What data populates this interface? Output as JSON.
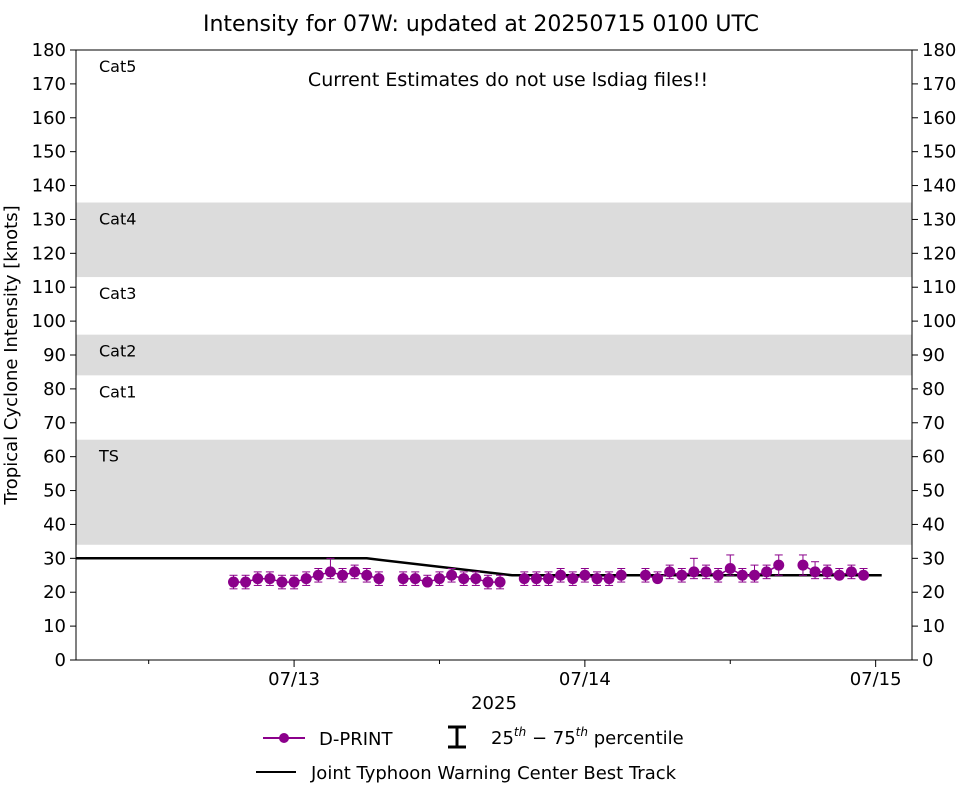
{
  "chart_data": {
    "type": "line",
    "title": "Intensity for 07W: updated at 20250715 0100 UTC",
    "annotation": "Current Estimates do not use lsdiag files!!",
    "xlabel": "2025",
    "ylabel": "Tropical Cyclone Intensity [knots]",
    "xlim": [
      "2025-07-12 06:00",
      "2025-07-15 03:00"
    ],
    "ylim": [
      0,
      180
    ],
    "yticks": [
      0,
      10,
      20,
      30,
      40,
      50,
      60,
      70,
      80,
      90,
      100,
      110,
      120,
      130,
      140,
      150,
      160,
      170,
      180
    ],
    "xticks": [
      {
        "label": "07/13",
        "time": "2025-07-13 00:00"
      },
      {
        "label": "07/14",
        "time": "2025-07-14 00:00"
      },
      {
        "label": "07/15",
        "time": "2025-07-15 00:00"
      }
    ],
    "minor_xticks": [
      "2025-07-12 12:00",
      "2025-07-13 12:00",
      "2025-07-14 12:00"
    ],
    "category_bands": [
      {
        "label": "TS",
        "ymin": 34,
        "ymax": 65,
        "shaded": true
      },
      {
        "label": "Cat1",
        "ymin": 65,
        "ymax": 84,
        "shaded": false
      },
      {
        "label": "Cat2",
        "ymin": 84,
        "ymax": 96,
        "shaded": true
      },
      {
        "label": "Cat3",
        "ymin": 96,
        "ymax": 113,
        "shaded": false
      },
      {
        "label": "Cat4",
        "ymin": 113,
        "ymax": 135,
        "shaded": true
      },
      {
        "label": "Cat5",
        "ymin": 135,
        "ymax": 180,
        "shaded": false
      }
    ],
    "band_color": "#dcdcdc",
    "series": [
      {
        "name": "D-PRINT",
        "color": "#8b008b",
        "points": [
          {
            "t": "2025-07-12 19:00",
            "y": 23,
            "lo": 21,
            "hi": 25
          },
          {
            "t": "2025-07-12 20:00",
            "y": 23,
            "lo": 21,
            "hi": 25
          },
          {
            "t": "2025-07-12 21:00",
            "y": 24,
            "lo": 22,
            "hi": 26
          },
          {
            "t": "2025-07-12 22:00",
            "y": 24,
            "lo": 22,
            "hi": 26
          },
          {
            "t": "2025-07-12 23:00",
            "y": 23,
            "lo": 21,
            "hi": 25
          },
          {
            "t": "2025-07-13 00:00",
            "y": 23,
            "lo": 21,
            "hi": 25
          },
          {
            "t": "2025-07-13 01:00",
            "y": 24,
            "lo": 22,
            "hi": 26
          },
          {
            "t": "2025-07-13 02:00",
            "y": 25,
            "lo": 23,
            "hi": 27
          },
          {
            "t": "2025-07-13 03:00",
            "y": 26,
            "lo": 24,
            "hi": 30
          },
          {
            "t": "2025-07-13 04:00",
            "y": 25,
            "lo": 23,
            "hi": 27
          },
          {
            "t": "2025-07-13 05:00",
            "y": 26,
            "lo": 24,
            "hi": 28
          },
          {
            "t": "2025-07-13 06:00",
            "y": 25,
            "lo": 23,
            "hi": 27
          },
          {
            "t": "2025-07-13 07:00",
            "y": 24,
            "lo": 22,
            "hi": 26
          },
          {
            "t": "2025-07-13 09:00",
            "y": 24,
            "lo": 22,
            "hi": 26
          },
          {
            "t": "2025-07-13 10:00",
            "y": 24,
            "lo": 22,
            "hi": 26
          },
          {
            "t": "2025-07-13 11:00",
            "y": 23,
            "lo": 22,
            "hi": 25
          },
          {
            "t": "2025-07-13 12:00",
            "y": 24,
            "lo": 22,
            "hi": 26
          },
          {
            "t": "2025-07-13 13:00",
            "y": 25,
            "lo": 23,
            "hi": 27
          },
          {
            "t": "2025-07-13 14:00",
            "y": 24,
            "lo": 22,
            "hi": 26
          },
          {
            "t": "2025-07-13 15:00",
            "y": 24,
            "lo": 22,
            "hi": 26
          },
          {
            "t": "2025-07-13 16:00",
            "y": 23,
            "lo": 21,
            "hi": 25
          },
          {
            "t": "2025-07-13 17:00",
            "y": 23,
            "lo": 21,
            "hi": 25
          },
          {
            "t": "2025-07-13 19:00",
            "y": 24,
            "lo": 22,
            "hi": 26
          },
          {
            "t": "2025-07-13 20:00",
            "y": 24,
            "lo": 22,
            "hi": 26
          },
          {
            "t": "2025-07-13 21:00",
            "y": 24,
            "lo": 22,
            "hi": 26
          },
          {
            "t": "2025-07-13 22:00",
            "y": 25,
            "lo": 23,
            "hi": 27
          },
          {
            "t": "2025-07-13 23:00",
            "y": 24,
            "lo": 22,
            "hi": 26
          },
          {
            "t": "2025-07-14 00:00",
            "y": 25,
            "lo": 23,
            "hi": 27
          },
          {
            "t": "2025-07-14 01:00",
            "y": 24,
            "lo": 22,
            "hi": 26
          },
          {
            "t": "2025-07-14 02:00",
            "y": 24,
            "lo": 22,
            "hi": 26
          },
          {
            "t": "2025-07-14 03:00",
            "y": 25,
            "lo": 23,
            "hi": 27
          },
          {
            "t": "2025-07-14 05:00",
            "y": 25,
            "lo": 23,
            "hi": 27
          },
          {
            "t": "2025-07-14 06:00",
            "y": 24,
            "lo": 23,
            "hi": 26
          },
          {
            "t": "2025-07-14 07:00",
            "y": 26,
            "lo": 24,
            "hi": 28
          },
          {
            "t": "2025-07-14 08:00",
            "y": 25,
            "lo": 23,
            "hi": 27
          },
          {
            "t": "2025-07-14 09:00",
            "y": 26,
            "lo": 24,
            "hi": 30
          },
          {
            "t": "2025-07-14 10:00",
            "y": 26,
            "lo": 24,
            "hi": 28
          },
          {
            "t": "2025-07-14 11:00",
            "y": 25,
            "lo": 23,
            "hi": 27
          },
          {
            "t": "2025-07-14 12:00",
            "y": 27,
            "lo": 25,
            "hi": 31
          },
          {
            "t": "2025-07-14 13:00",
            "y": 25,
            "lo": 23,
            "hi": 27
          },
          {
            "t": "2025-07-14 14:00",
            "y": 25,
            "lo": 23,
            "hi": 28
          },
          {
            "t": "2025-07-14 15:00",
            "y": 26,
            "lo": 24,
            "hi": 28
          },
          {
            "t": "2025-07-14 16:00",
            "y": 28,
            "lo": 25,
            "hi": 31
          },
          {
            "t": "2025-07-14 18:00",
            "y": 28,
            "lo": 25,
            "hi": 31
          },
          {
            "t": "2025-07-14 19:00",
            "y": 26,
            "lo": 24,
            "hi": 29
          },
          {
            "t": "2025-07-14 20:00",
            "y": 26,
            "lo": 24,
            "hi": 28
          },
          {
            "t": "2025-07-14 21:00",
            "y": 25,
            "lo": 24,
            "hi": 27
          },
          {
            "t": "2025-07-14 22:00",
            "y": 26,
            "lo": 24,
            "hi": 28
          },
          {
            "t": "2025-07-14 23:00",
            "y": 25,
            "lo": 24,
            "hi": 27
          }
        ]
      },
      {
        "name": "Joint Typhoon Warning Center Best Track",
        "color": "#000000",
        "points": [
          {
            "t": "2025-07-12 06:00",
            "y": 30
          },
          {
            "t": "2025-07-13 06:00",
            "y": 30
          },
          {
            "t": "2025-07-13 18:00",
            "y": 25
          },
          {
            "t": "2025-07-15 00:30",
            "y": 25
          }
        ]
      }
    ],
    "legend": {
      "placement": "bottom-center",
      "entries": [
        {
          "label": "D-PRINT"
        },
        {
          "label_prefix": "25",
          "label_sup1": "th",
          "label_mid": " − 75",
          "label_sup2": "th",
          "label_suffix": " percentile"
        },
        {
          "label": "Joint Typhoon Warning Center Best Track"
        }
      ]
    }
  }
}
